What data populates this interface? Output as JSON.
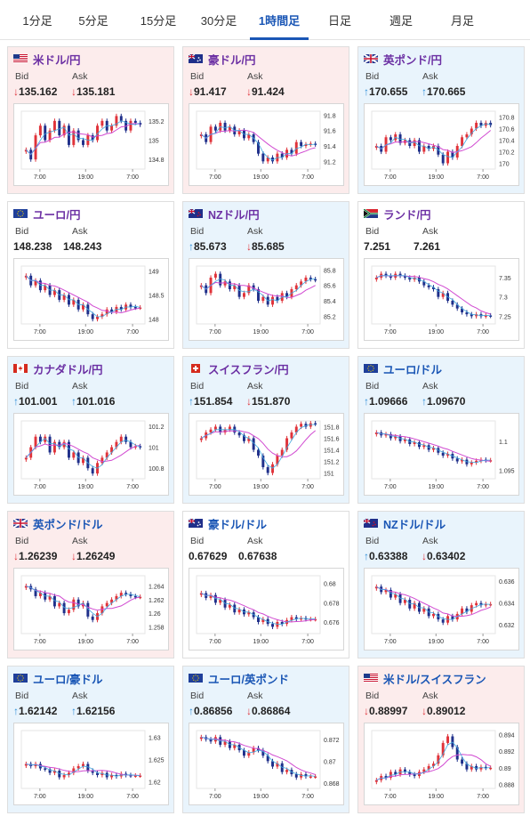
{
  "tabs": [
    "1分足",
    "5分足",
    "15分足",
    "30分足",
    "1時間足",
    "日足",
    "週足",
    "月足"
  ],
  "active_tab": 4,
  "labels": {
    "bid": "Bid",
    "ask": "Ask"
  },
  "colors": {
    "down_bg": "#fcecec",
    "up_bg": "#e9f4fc",
    "down_candle": "#e0333a",
    "up_candle": "#1f2f8a",
    "ma_line": "#d14ad1",
    "ma_line2": "#3fa8e0"
  },
  "pairs": [
    {
      "name": "米ドル/円",
      "flag": "us-flag-icon",
      "trend": "down",
      "bid": "135.162",
      "ask": "135.181",
      "bid_dir": "down",
      "ask_dir": "down",
      "chart_data": {
        "type": "candlestick",
        "x_ticks": [
          "7:00",
          "19:00",
          "7:00"
        ],
        "y_ticks": [
          "135.2",
          "135",
          "134.8"
        ],
        "ylim": [
          134.7,
          135.3
        ],
        "closes": [
          134.9,
          134.8,
          135.05,
          135.15,
          135.0,
          135.1,
          135.2,
          135.05,
          135.15,
          134.95,
          135.1,
          135.0,
          134.95,
          135.05,
          135.0,
          135.15,
          135.2,
          135.1,
          135.15,
          135.25,
          135.2,
          135.1,
          135.2,
          135.18,
          135.16
        ]
      }
    },
    {
      "name": "豪ドル/円",
      "flag": "au-flag-icon",
      "trend": "down",
      "bid": "91.417",
      "ask": "91.424",
      "bid_dir": "down",
      "ask_dir": "down",
      "chart_data": {
        "type": "candlestick",
        "x_ticks": [
          "7:00",
          "19:00",
          "7:00"
        ],
        "y_ticks": [
          "91.8",
          "91.6",
          "91.4",
          "91.2"
        ],
        "ylim": [
          91.1,
          91.85
        ],
        "closes": [
          91.55,
          91.45,
          91.65,
          91.6,
          91.7,
          91.6,
          91.65,
          91.55,
          91.6,
          91.5,
          91.55,
          91.45,
          91.3,
          91.2,
          91.25,
          91.2,
          91.3,
          91.25,
          91.35,
          91.3,
          91.45,
          91.4,
          91.42,
          91.43,
          91.42
        ]
      }
    },
    {
      "name": "英ポンド/円",
      "flag": "gb-flag-icon",
      "trend": "up",
      "bid": "170.655",
      "ask": "170.665",
      "bid_dir": "up",
      "ask_dir": "up",
      "chart_data": {
        "type": "candlestick",
        "x_ticks": [
          "7:00",
          "19:00",
          "7:00"
        ],
        "y_ticks": [
          "170.8",
          "170.6",
          "170.4",
          "170.2",
          "170"
        ],
        "ylim": [
          169.9,
          170.9
        ],
        "closes": [
          170.3,
          170.2,
          170.45,
          170.4,
          170.5,
          170.35,
          170.4,
          170.3,
          170.4,
          170.2,
          170.3,
          170.25,
          170.3,
          170.15,
          170.0,
          170.2,
          170.1,
          170.3,
          170.45,
          170.5,
          170.6,
          170.7,
          170.65,
          170.7,
          170.66
        ]
      }
    },
    {
      "name": "ユーロ/円",
      "flag": "eu-flag-icon",
      "trend": "flat",
      "bid": "148.238",
      "ask": "148.243",
      "bid_dir": "none",
      "ask_dir": "none",
      "chart_data": {
        "type": "candlestick",
        "x_ticks": [
          "7:00",
          "19:00",
          "7:00"
        ],
        "y_ticks": [
          "149",
          "148.5",
          "148"
        ],
        "ylim": [
          147.9,
          149.1
        ],
        "closes": [
          148.9,
          148.7,
          148.8,
          148.6,
          148.7,
          148.5,
          148.6,
          148.4,
          148.5,
          148.3,
          148.4,
          148.2,
          148.3,
          148.1,
          148.0,
          148.05,
          148.1,
          148.2,
          148.15,
          148.25,
          148.2,
          148.3,
          148.25,
          148.24,
          148.24
        ]
      }
    },
    {
      "name": "NZドル/円",
      "flag": "nz-flag-icon",
      "trend": "up",
      "bid": "85.673",
      "ask": "85.685",
      "bid_dir": "up",
      "ask_dir": "down",
      "chart_data": {
        "type": "candlestick",
        "x_ticks": [
          "7:00",
          "19:00",
          "7:00"
        ],
        "y_ticks": [
          "85.8",
          "85.6",
          "85.4",
          "85.2"
        ],
        "ylim": [
          85.1,
          85.85
        ],
        "closes": [
          85.6,
          85.5,
          85.7,
          85.75,
          85.6,
          85.65,
          85.55,
          85.6,
          85.45,
          85.5,
          85.6,
          85.55,
          85.4,
          85.45,
          85.35,
          85.45,
          85.4,
          85.5,
          85.45,
          85.55,
          85.6,
          85.65,
          85.7,
          85.68,
          85.67
        ]
      }
    },
    {
      "name": "ランド/円",
      "flag": "za-flag-icon",
      "trend": "flat",
      "bid": "7.251",
      "ask": "7.261",
      "bid_dir": "none",
      "ask_dir": "none",
      "chart_data": {
        "type": "candlestick",
        "x_ticks": [
          "7:00",
          "19:00",
          "7:00"
        ],
        "y_ticks": [
          "7.35",
          "7.3",
          "7.25"
        ],
        "ylim": [
          7.23,
          7.38
        ],
        "closes": [
          7.35,
          7.36,
          7.355,
          7.35,
          7.36,
          7.355,
          7.35,
          7.345,
          7.35,
          7.34,
          7.33,
          7.325,
          7.32,
          7.3,
          7.31,
          7.29,
          7.28,
          7.27,
          7.26,
          7.255,
          7.25,
          7.255,
          7.25,
          7.252,
          7.251
        ]
      }
    },
    {
      "name": "カナダドル/円",
      "flag": "ca-flag-icon",
      "trend": "up",
      "bid": "101.001",
      "ask": "101.016",
      "bid_dir": "up",
      "ask_dir": "up",
      "chart_data": {
        "type": "candlestick",
        "x_ticks": [
          "7:00",
          "19:00",
          "7:00"
        ],
        "y_ticks": [
          "101.2",
          "101",
          "100.8"
        ],
        "ylim": [
          100.7,
          101.25
        ],
        "closes": [
          100.9,
          101.0,
          101.1,
          101.05,
          101.1,
          100.95,
          101.05,
          101.0,
          101.05,
          100.9,
          100.95,
          100.85,
          100.9,
          100.8,
          100.75,
          100.85,
          100.9,
          100.95,
          101.0,
          101.05,
          101.1,
          101.05,
          101.0,
          101.01,
          101.0
        ]
      }
    },
    {
      "name": "スイスフラン/円",
      "flag": "ch-flag-icon",
      "trend": "up",
      "bid": "151.854",
      "ask": "151.870",
      "bid_dir": "up",
      "ask_dir": "down",
      "chart_data": {
        "type": "candlestick",
        "x_ticks": [
          "7:00",
          "19:00",
          "7:00"
        ],
        "y_ticks": [
          "151.8",
          "151.6",
          "151.4",
          "151.2",
          "151"
        ],
        "ylim": [
          150.9,
          151.9
        ],
        "closes": [
          151.6,
          151.7,
          151.75,
          151.8,
          151.7,
          151.75,
          151.8,
          151.7,
          151.65,
          151.55,
          151.6,
          151.4,
          151.3,
          151.1,
          151.0,
          151.15,
          151.3,
          151.4,
          151.6,
          151.7,
          151.8,
          151.85,
          151.8,
          151.86,
          151.85
        ]
      }
    },
    {
      "name": "ユーロ/ドル",
      "flag": "eu-flag-icon",
      "trend": "up",
      "bid": "1.09666",
      "ask": "1.09670",
      "bid_dir": "up",
      "ask_dir": "up",
      "chart_data": {
        "type": "candlestick",
        "x_ticks": [
          "7:00",
          "19:00",
          "7:00"
        ],
        "y_ticks": [
          "1.1",
          "1.095"
        ],
        "ylim": [
          1.0935,
          1.1035
        ],
        "closes": [
          1.1015,
          1.101,
          1.1012,
          1.1005,
          1.1008,
          1.1,
          1.1003,
          1.0995,
          1.0998,
          1.099,
          1.0993,
          1.0985,
          1.0988,
          1.098,
          1.0975,
          1.0978,
          1.097,
          1.0965,
          1.0968,
          1.096,
          1.0963,
          1.0966,
          1.0968,
          1.0967,
          1.0967
        ]
      }
    },
    {
      "name": "英ポンド/ドル",
      "flag": "gb-flag-icon",
      "trend": "down",
      "bid": "1.26239",
      "ask": "1.26249",
      "bid_dir": "down",
      "ask_dir": "down",
      "chart_data": {
        "type": "candlestick",
        "x_ticks": [
          "7:00",
          "19:00",
          "7:00"
        ],
        "y_ticks": [
          "1.264",
          "1.262",
          "1.26",
          "1.258"
        ],
        "ylim": [
          1.257,
          1.2655
        ],
        "closes": [
          1.264,
          1.2635,
          1.2625,
          1.263,
          1.262,
          1.2625,
          1.261,
          1.2615,
          1.26,
          1.2605,
          1.262,
          1.261,
          1.2615,
          1.2595,
          1.259,
          1.26,
          1.261,
          1.2615,
          1.262,
          1.2625,
          1.263,
          1.2628,
          1.2625,
          1.2624,
          1.2624
        ]
      }
    },
    {
      "name": "豪ドル/ドル",
      "flag": "au-flag-icon",
      "trend": "flat",
      "bid": "0.67629",
      "ask": "0.67638",
      "bid_dir": "none",
      "ask_dir": "none",
      "chart_data": {
        "type": "candlestick",
        "x_ticks": [
          "7:00",
          "19:00",
          "7:00"
        ],
        "y_ticks": [
          "0.68",
          "0.678",
          "0.676"
        ],
        "ylim": [
          0.6748,
          0.6808
        ],
        "closes": [
          0.679,
          0.6785,
          0.6788,
          0.678,
          0.6783,
          0.6775,
          0.6778,
          0.677,
          0.6773,
          0.6768,
          0.677,
          0.6765,
          0.676,
          0.6763,
          0.6758,
          0.6755,
          0.676,
          0.6758,
          0.6762,
          0.6765,
          0.6763,
          0.6764,
          0.6763,
          0.6763,
          0.6763
        ]
      }
    },
    {
      "name": "NZドル/ドル",
      "flag": "nz-flag-icon",
      "trend": "up",
      "bid": "0.63388",
      "ask": "0.63402",
      "bid_dir": "up",
      "ask_dir": "down",
      "chart_data": {
        "type": "candlestick",
        "x_ticks": [
          "7:00",
          "19:00",
          "7:00"
        ],
        "y_ticks": [
          "0.636",
          "0.634",
          "0.632"
        ],
        "ylim": [
          0.6312,
          0.6365
        ],
        "closes": [
          0.6355,
          0.635,
          0.6352,
          0.6345,
          0.6348,
          0.634,
          0.6343,
          0.6335,
          0.634,
          0.6332,
          0.6335,
          0.6328,
          0.633,
          0.6325,
          0.6322,
          0.6328,
          0.6325,
          0.633,
          0.6335,
          0.6332,
          0.6338,
          0.634,
          0.6338,
          0.6339,
          0.6339
        ]
      }
    },
    {
      "name": "ユーロ/豪ドル",
      "flag": "eu-flag-icon",
      "trend": "up",
      "bid": "1.62142",
      "ask": "1.62156",
      "bid_dir": "up",
      "ask_dir": "up",
      "chart_data": {
        "type": "candlestick",
        "x_ticks": [
          "7:00",
          "19:00",
          "7:00"
        ],
        "y_ticks": [
          "1.63",
          "1.625",
          "1.62"
        ],
        "ylim": [
          1.6185,
          1.6315
        ],
        "closes": [
          1.624,
          1.6235,
          1.624,
          1.623,
          1.6228,
          1.622,
          1.6225,
          1.621,
          1.6215,
          1.622,
          1.623,
          1.6235,
          1.624,
          1.6225,
          1.622,
          1.6215,
          1.622,
          1.621,
          1.6215,
          1.6212,
          1.6218,
          1.6215,
          1.6214,
          1.6214,
          1.6214
        ]
      }
    },
    {
      "name": "ユーロ/英ポンド",
      "flag": "eu-flag-icon",
      "trend": "up",
      "bid": "0.86856",
      "ask": "0.86864",
      "bid_dir": "up",
      "ask_dir": "down",
      "chart_data": {
        "type": "candlestick",
        "x_ticks": [
          "7:00",
          "19:00",
          "7:00"
        ],
        "y_ticks": [
          "0.872",
          "0.87",
          "0.868"
        ],
        "ylim": [
          0.8675,
          0.8728
        ],
        "closes": [
          0.8722,
          0.872,
          0.8718,
          0.8722,
          0.8715,
          0.8718,
          0.8712,
          0.8715,
          0.871,
          0.8705,
          0.8708,
          0.8712,
          0.871,
          0.8705,
          0.87,
          0.8695,
          0.8698,
          0.869,
          0.8692,
          0.8688,
          0.8685,
          0.8688,
          0.8686,
          0.8686,
          0.8686
        ]
      }
    },
    {
      "name": "米ドル/スイスフラン",
      "flag": "us-flag-icon",
      "trend": "down",
      "bid": "0.88997",
      "ask": "0.89012",
      "bid_dir": "down",
      "ask_dir": "down",
      "chart_data": {
        "type": "candlestick",
        "x_ticks": [
          "7:00",
          "19:00",
          "7:00"
        ],
        "y_ticks": [
          "0.894",
          "0.892",
          "0.89",
          "0.888"
        ],
        "ylim": [
          0.8875,
          0.8945
        ],
        "closes": [
          0.8885,
          0.889,
          0.8888,
          0.8895,
          0.8892,
          0.8898,
          0.8895,
          0.8892,
          0.889,
          0.8895,
          0.8898,
          0.8902,
          0.8905,
          0.8915,
          0.893,
          0.8938,
          0.8925,
          0.891,
          0.8905,
          0.8898,
          0.8902,
          0.8898,
          0.8901,
          0.89,
          0.89
        ]
      }
    }
  ]
}
